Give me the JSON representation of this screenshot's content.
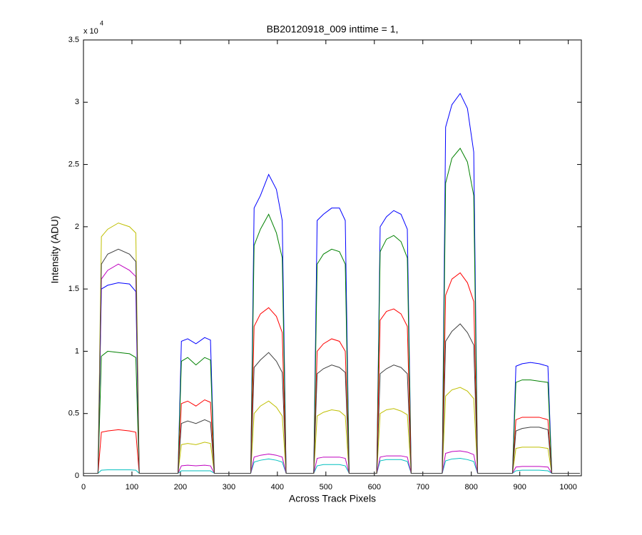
{
  "chart_data": {
    "type": "line",
    "title": "BB20120918_009 inttime = 1,",
    "xlabel": "Across Track Pixels",
    "ylabel": "Intensity (ADU)",
    "y_multiplier": "x 10",
    "y_multiplier_exp": "4",
    "xlim": [
      0,
      1027
    ],
    "ylim": [
      0,
      35000
    ],
    "xticks": [
      0,
      100,
      200,
      300,
      400,
      500,
      600,
      700,
      800,
      900,
      1000
    ],
    "yticks": [
      {
        "value": 0,
        "label": "0"
      },
      {
        "value": 5000,
        "label": "0.5"
      },
      {
        "value": 10000,
        "label": "1"
      },
      {
        "value": 15000,
        "label": "1.5"
      },
      {
        "value": 20000,
        "label": "2"
      },
      {
        "value": 25000,
        "label": "2.5"
      },
      {
        "value": 30000,
        "label": "3"
      },
      {
        "value": 35000,
        "label": "3.5"
      }
    ],
    "x": [
      0,
      30,
      37,
      50,
      72,
      95,
      108,
      115,
      195,
      202,
      215,
      232,
      250,
      262,
      270,
      345,
      352,
      365,
      382,
      398,
      410,
      418,
      475,
      482,
      495,
      512,
      528,
      540,
      548,
      605,
      612,
      625,
      640,
      655,
      668,
      676,
      740,
      747,
      760,
      777,
      792,
      805,
      813,
      885,
      892,
      905,
      922,
      940,
      958,
      966,
      1024
    ],
    "series": [
      {
        "color": "#0000ff",
        "values": [
          200,
          200,
          15000,
          15300,
          15500,
          15400,
          14800,
          200,
          200,
          10800,
          11000,
          10600,
          11100,
          10900,
          200,
          200,
          21500,
          22500,
          24200,
          23000,
          20500,
          200,
          200,
          20500,
          21000,
          21500,
          21500,
          20500,
          200,
          200,
          20000,
          20800,
          21300,
          21000,
          19800,
          200,
          200,
          28000,
          29800,
          30700,
          29500,
          26000,
          200,
          200,
          8800,
          9000,
          9100,
          9000,
          8800,
          200,
          200
        ]
      },
      {
        "color": "#008000",
        "values": [
          200,
          200,
          9600,
          10000,
          9900,
          9800,
          9500,
          200,
          200,
          9200,
          9500,
          8900,
          9500,
          9300,
          200,
          200,
          18500,
          19800,
          21000,
          19500,
          17500,
          200,
          200,
          17000,
          17800,
          18200,
          18000,
          17000,
          200,
          200,
          18000,
          19000,
          19300,
          18800,
          17500,
          200,
          200,
          23500,
          25500,
          26300,
          25200,
          22500,
          200,
          200,
          7500,
          7700,
          7700,
          7600,
          7500,
          200,
          200
        ]
      },
      {
        "color": "#ff0000",
        "values": [
          200,
          200,
          3500,
          3600,
          3700,
          3600,
          3500,
          200,
          200,
          5800,
          6000,
          5600,
          6100,
          5900,
          200,
          200,
          12000,
          13000,
          13500,
          12800,
          11500,
          200,
          200,
          10000,
          10600,
          11000,
          10800,
          10000,
          200,
          200,
          12500,
          13200,
          13400,
          13000,
          12000,
          200,
          200,
          14500,
          15800,
          16300,
          15500,
          14000,
          200,
          200,
          4500,
          4700,
          4700,
          4700,
          4500,
          200,
          200
        ]
      },
      {
        "color": "#00bfbf",
        "values": [
          200,
          200,
          450,
          480,
          480,
          480,
          450,
          200,
          200,
          400,
          400,
          400,
          400,
          400,
          200,
          200,
          1100,
          1250,
          1350,
          1250,
          1100,
          200,
          200,
          800,
          900,
          900,
          900,
          800,
          200,
          200,
          1200,
          1300,
          1300,
          1300,
          1150,
          200,
          200,
          1200,
          1350,
          1400,
          1300,
          1150,
          200,
          200,
          400,
          450,
          450,
          450,
          400,
          200,
          200
        ]
      },
      {
        "color": "#bf00bf",
        "values": [
          200,
          200,
          15800,
          16500,
          17000,
          16500,
          16000,
          200,
          200,
          800,
          850,
          800,
          850,
          800,
          200,
          200,
          1500,
          1650,
          1750,
          1650,
          1500,
          200,
          200,
          1400,
          1500,
          1500,
          1500,
          1400,
          200,
          200,
          1500,
          1600,
          1600,
          1600,
          1500,
          200,
          200,
          1800,
          1950,
          2000,
          1900,
          1700,
          200,
          200,
          700,
          750,
          750,
          750,
          700,
          200,
          200
        ]
      },
      {
        "color": "#bfbf00",
        "values": [
          200,
          200,
          19200,
          19800,
          20300,
          20000,
          19500,
          200,
          200,
          2500,
          2600,
          2500,
          2700,
          2600,
          200,
          200,
          5000,
          5600,
          6000,
          5500,
          4800,
          200,
          200,
          4800,
          5100,
          5300,
          5200,
          4800,
          200,
          200,
          5000,
          5300,
          5400,
          5200,
          4900,
          200,
          200,
          6400,
          6900,
          7100,
          6800,
          6200,
          200,
          200,
          2200,
          2300,
          2300,
          2300,
          2200,
          200,
          200
        ]
      },
      {
        "color": "#404040",
        "values": [
          200,
          200,
          17000,
          17800,
          18200,
          17800,
          17200,
          200,
          200,
          4200,
          4400,
          4200,
          4500,
          4300,
          200,
          200,
          8700,
          9300,
          9900,
          9200,
          8300,
          200,
          200,
          8200,
          8600,
          8900,
          8700,
          8300,
          200,
          200,
          8200,
          8600,
          8900,
          8700,
          8200,
          200,
          200,
          10800,
          11600,
          12200,
          11500,
          10500,
          200,
          200,
          3600,
          3800,
          3900,
          3900,
          3700,
          200,
          200
        ]
      }
    ]
  }
}
